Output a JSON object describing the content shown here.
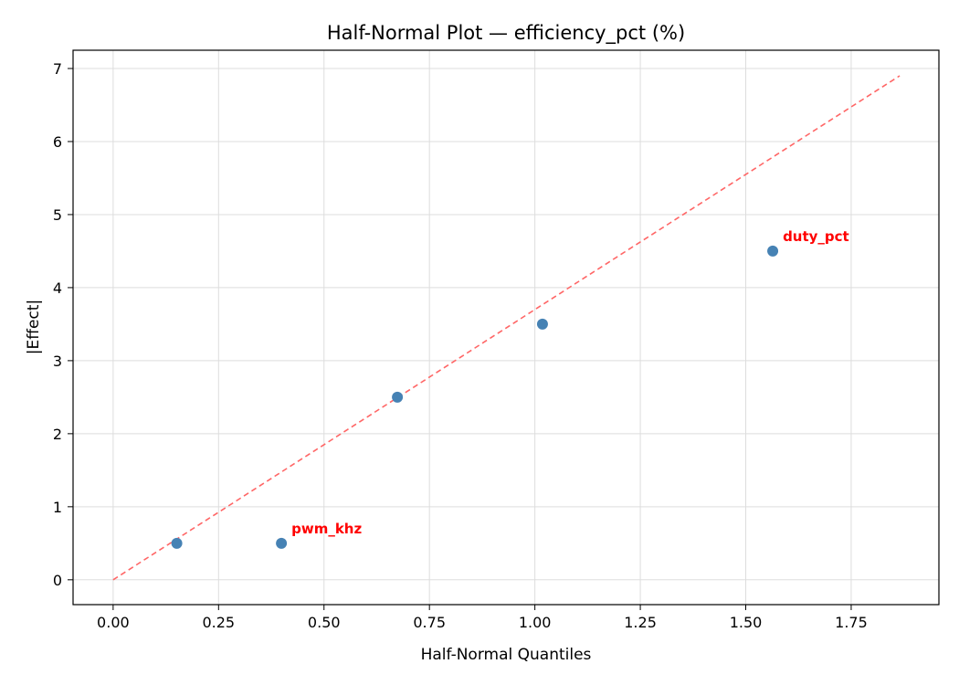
{
  "chart_data": {
    "type": "scatter",
    "title": "Half-Normal Plot — efficiency_pct (%)",
    "xlabel": "Half-Normal Quantiles",
    "ylabel": "|Effect|",
    "xlim": [
      -0.095,
      1.958
    ],
    "ylim": [
      -0.34,
      7.25
    ],
    "xticks": [
      0.0,
      0.25,
      0.5,
      0.75,
      1.0,
      1.25,
      1.5,
      1.75
    ],
    "xtick_labels": [
      "0.00",
      "0.25",
      "0.50",
      "0.75",
      "1.00",
      "1.25",
      "1.50",
      "1.75"
    ],
    "yticks": [
      0,
      1,
      2,
      3,
      4,
      5,
      6,
      7
    ],
    "ytick_labels": [
      "0",
      "1",
      "2",
      "3",
      "4",
      "5",
      "6",
      "7"
    ],
    "grid": true,
    "points": [
      {
        "x": 0.151,
        "y": 0.5,
        "label": ""
      },
      {
        "x": 0.399,
        "y": 0.5,
        "label": "pwm_khz"
      },
      {
        "x": 0.674,
        "y": 2.5,
        "label": ""
      },
      {
        "x": 1.018,
        "y": 3.5,
        "label": ""
      },
      {
        "x": 1.564,
        "y": 4.5,
        "label": "duty_pct"
      }
    ],
    "reference_line": {
      "x": [
        0,
        1.865
      ],
      "y": [
        0,
        6.9
      ],
      "style": "dashed"
    },
    "colors": {
      "points": "#4682b4",
      "line": "#ff6666",
      "labels": "#ff0000"
    }
  }
}
